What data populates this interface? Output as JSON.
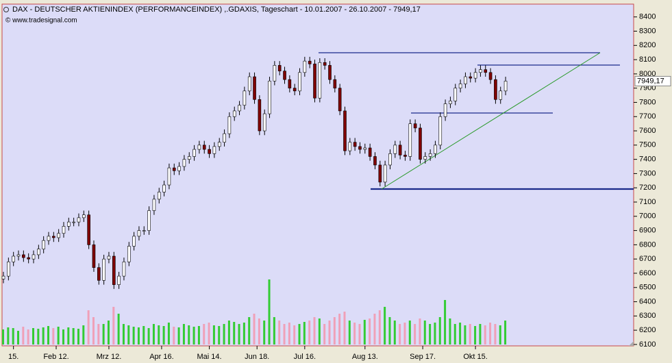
{
  "chart_data": {
    "type": "candlestick",
    "title": "DAX  - DEUTSCHER AKTIENINDEX (PERFORMANCEINDEX) ,.GDAXIS, Tageschart - 10.01.2007 - 26.10.2007 - 7949,17",
    "subtitle": "© www.tradesignal.com",
    "last_price": {
      "value": 7949.17,
      "label": "7949,17"
    },
    "xlim": [
      -0.55,
      251
    ],
    "ylim": [
      6090,
      8490
    ],
    "yticks": [
      6100,
      6200,
      6300,
      6400,
      6500,
      6600,
      6700,
      6800,
      6900,
      7000,
      7100,
      7200,
      7300,
      7400,
      7500,
      7600,
      7700,
      7800,
      7900,
      8000,
      8100,
      8200,
      8300,
      8400
    ],
    "xticks": [
      {
        "value": 4,
        "label": "15."
      },
      {
        "value": 21,
        "label": "Feb 12."
      },
      {
        "value": 42,
        "label": "Mrz 12."
      },
      {
        "value": 63,
        "label": "Apr 16."
      },
      {
        "value": 82,
        "label": "Mai 14."
      },
      {
        "value": 101,
        "label": "Jun 18."
      },
      {
        "value": 120,
        "label": "Jul 16."
      },
      {
        "value": 144,
        "label": "Aug 13."
      },
      {
        "value": 167,
        "label": "Sep 17."
      },
      {
        "value": 188,
        "label": "Okt 15."
      }
    ],
    "up_color": "#ffffff",
    "down_color": "#800000",
    "volume_up_color": "#33cc33",
    "volume_down_color": "#f0a0b8",
    "volume_lim": [
      0,
      250
    ],
    "x": [
      0,
      2,
      4,
      6,
      8,
      10,
      12,
      14,
      16,
      18,
      20,
      22,
      24,
      26,
      28,
      30,
      32,
      34,
      36,
      38,
      40,
      42,
      44,
      46,
      48,
      50,
      52,
      54,
      56,
      58,
      60,
      62,
      64,
      66,
      68,
      70,
      72,
      74,
      76,
      78,
      80,
      82,
      84,
      86,
      88,
      90,
      92,
      94,
      96,
      98,
      100,
      102,
      104,
      106,
      108,
      110,
      112,
      114,
      116,
      118,
      120,
      122,
      124,
      126,
      128,
      130,
      132,
      134,
      136,
      138,
      140,
      142,
      144,
      146,
      148,
      150,
      152,
      154,
      156,
      158,
      160,
      162,
      164,
      166,
      168,
      170,
      172,
      174,
      176,
      178,
      180,
      182,
      184,
      186,
      188,
      190,
      192,
      194,
      196,
      198,
      200
    ],
    "open": [
      6560,
      6580,
      6680,
      6720,
      6730,
      6710,
      6700,
      6730,
      6770,
      6830,
      6860,
      6850,
      6880,
      6930,
      6960,
      6960,
      6990,
      7010,
      6800,
      6640,
      6550,
      6700,
      6720,
      6520,
      6580,
      6680,
      6790,
      6860,
      6900,
      6900,
      7040,
      7120,
      7170,
      7220,
      7340,
      7320,
      7350,
      7400,
      7420,
      7470,
      7500,
      7470,
      7440,
      7490,
      7520,
      7580,
      7700,
      7740,
      7780,
      7880,
      7980,
      7820,
      7600,
      7720,
      7950,
      8060,
      8020,
      7960,
      7900,
      7880,
      8010,
      8090,
      8070,
      7830,
      8080,
      8060,
      7960,
      7900,
      7740,
      7460,
      7520,
      7490,
      7470,
      7480,
      7420,
      7360,
      7240,
      7360,
      7440,
      7500,
      7430,
      7420,
      7650,
      7620,
      7400,
      7420,
      7440,
      7500,
      7700,
      7790,
      7810,
      7900,
      7930,
      7980,
      7970,
      8010,
      8030,
      8010,
      7960,
      7820,
      7880
    ],
    "high": [
      6610,
      6710,
      6750,
      6760,
      6760,
      6740,
      6760,
      6800,
      6860,
      6890,
      6890,
      6910,
      6960,
      6990,
      6990,
      7020,
      7040,
      7040,
      6830,
      6670,
      6730,
      6750,
      6750,
      6610,
      6710,
      6820,
      6890,
      6930,
      6930,
      7070,
      7150,
      7200,
      7250,
      7370,
      7370,
      7380,
      7430,
      7450,
      7500,
      7530,
      7530,
      7500,
      7520,
      7550,
      7610,
      7730,
      7770,
      7810,
      7910,
      8010,
      8010,
      7850,
      7750,
      7980,
      8090,
      8090,
      8050,
      7990,
      7930,
      8040,
      8120,
      8120,
      8100,
      8110,
      8110,
      8090,
      7990,
      7930,
      7770,
      7550,
      7550,
      7520,
      7510,
      7510,
      7450,
      7390,
      7390,
      7470,
      7530,
      7530,
      7460,
      7680,
      7680,
      7650,
      7450,
      7470,
      7530,
      7730,
      7820,
      7840,
      7930,
      7960,
      8010,
      8010,
      8040,
      8060,
      8060,
      8040,
      7990,
      7910,
      7980
    ],
    "low": [
      6530,
      6550,
      6650,
      6690,
      6680,
      6670,
      6670,
      6700,
      6740,
      6800,
      6820,
      6820,
      6850,
      6900,
      6930,
      6930,
      6960,
      6770,
      6610,
      6520,
      6520,
      6670,
      6490,
      6490,
      6550,
      6650,
      6760,
      6830,
      6870,
      6870,
      7010,
      7090,
      7140,
      7190,
      7290,
      7290,
      7320,
      7370,
      7390,
      7440,
      7440,
      7410,
      7410,
      7460,
      7490,
      7550,
      7670,
      7710,
      7750,
      7850,
      7790,
      7570,
      7570,
      7690,
      7920,
      7990,
      7930,
      7870,
      7850,
      7850,
      7980,
      8040,
      7800,
      7800,
      8030,
      7930,
      7870,
      7710,
      7430,
      7430,
      7460,
      7440,
      7440,
      7390,
      7330,
      7210,
      7210,
      7330,
      7410,
      7400,
      7390,
      7390,
      7590,
      7370,
      7370,
      7390,
      7410,
      7470,
      7670,
      7760,
      7780,
      7870,
      7900,
      7940,
      7940,
      7980,
      7980,
      7930,
      7790,
      7790,
      7850
    ],
    "close": [
      6580,
      6680,
      6720,
      6730,
      6710,
      6700,
      6730,
      6770,
      6830,
      6860,
      6850,
      6880,
      6930,
      6960,
      6960,
      6990,
      7010,
      6800,
      6640,
      6550,
      6700,
      6720,
      6520,
      6580,
      6680,
      6790,
      6860,
      6900,
      6900,
      7040,
      7120,
      7170,
      7220,
      7340,
      7320,
      7350,
      7400,
      7420,
      7470,
      7500,
      7470,
      7440,
      7490,
      7520,
      7580,
      7700,
      7740,
      7780,
      7880,
      7980,
      7820,
      7600,
      7720,
      7950,
      8060,
      8020,
      7960,
      7900,
      7880,
      8010,
      8090,
      8070,
      7830,
      8080,
      8060,
      7960,
      7900,
      7740,
      7460,
      7520,
      7490,
      7470,
      7480,
      7420,
      7360,
      7240,
      7360,
      7440,
      7500,
      7430,
      7420,
      7650,
      7620,
      7400,
      7420,
      7440,
      7500,
      7700,
      7790,
      7810,
      7900,
      7930,
      7980,
      7970,
      8010,
      8030,
      8010,
      7960,
      7820,
      7880,
      7949.17
    ],
    "volume": [
      22,
      25,
      24,
      20,
      26,
      22,
      24,
      23,
      25,
      27,
      24,
      26,
      22,
      25,
      24,
      23,
      28,
      50,
      40,
      30,
      30,
      35,
      55,
      45,
      30,
      28,
      26,
      25,
      27,
      24,
      30,
      28,
      27,
      32,
      26,
      25,
      30,
      28,
      26,
      27,
      30,
      32,
      28,
      27,
      30,
      35,
      33,
      30,
      32,
      40,
      45,
      38,
      35,
      95,
      40,
      35,
      30,
      32,
      28,
      30,
      33,
      35,
      40,
      38,
      30,
      35,
      40,
      45,
      48,
      35,
      32,
      30,
      36,
      38,
      45,
      50,
      55,
      40,
      35,
      30,
      32,
      35,
      30,
      38,
      35,
      30,
      32,
      40,
      65,
      38,
      30,
      32,
      28,
      30,
      27,
      30,
      28,
      32,
      30,
      28,
      35
    ]
  }
}
